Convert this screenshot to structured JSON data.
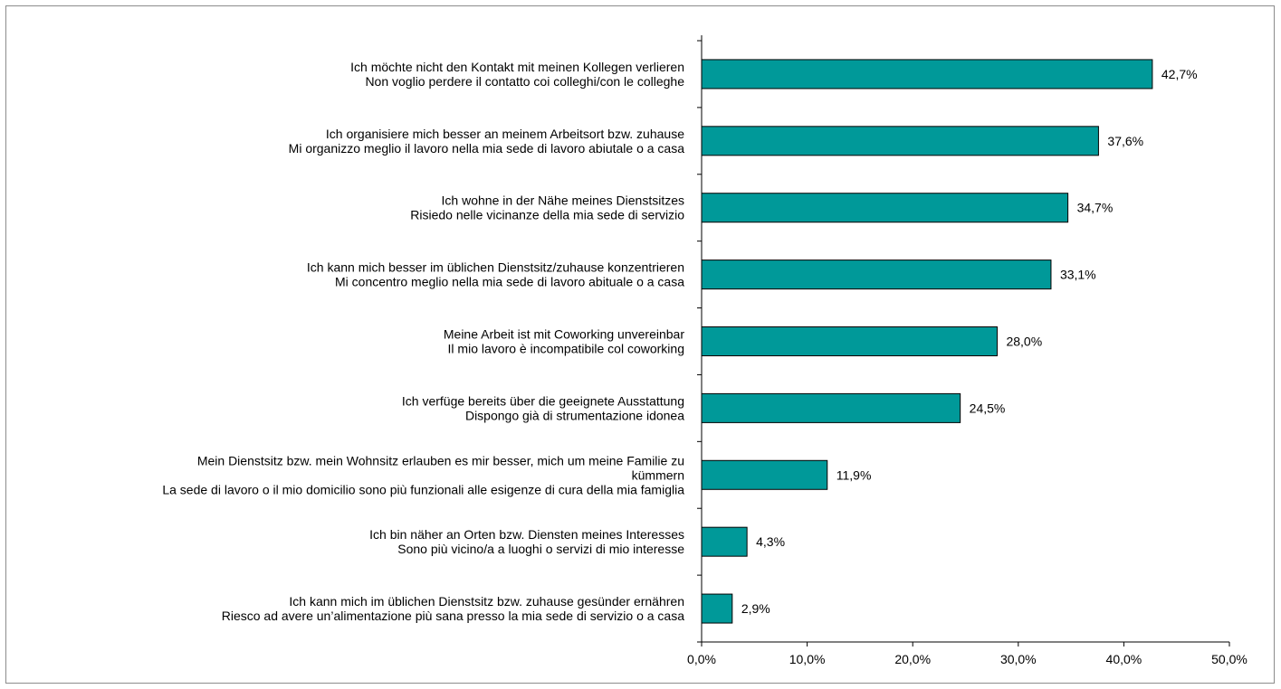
{
  "chart_data": {
    "type": "bar",
    "orientation": "horizontal",
    "title": "",
    "xlabel": "",
    "ylabel": "",
    "xlim": [
      0,
      50
    ],
    "grid": false,
    "legend": "none",
    "bar_color": "#009999",
    "bar_edge_color": "#000000",
    "x_ticks": [
      "0,0%",
      "10,0%",
      "20,0%",
      "30,0%",
      "40,0%",
      "50,0%"
    ],
    "categories": [
      [
        "Ich möchte nicht den Kontakt mit meinen Kollegen verlieren",
        "Non voglio perdere il contatto coi colleghi/con le colleghe"
      ],
      [
        "Ich organisiere mich besser an meinem Arbeitsort bzw. zuhause",
        "Mi organizzo meglio il lavoro nella mia sede di lavoro abiutale o a casa"
      ],
      [
        "Ich wohne in der Nähe meines Dienstsitzes",
        "Risiedo nelle vicinanze della mia sede di servizio"
      ],
      [
        "Ich kann mich besser im üblichen Dienstsitz/zuhause konzentrieren",
        "Mi concentro meglio nella mia sede di lavoro abituale o a casa"
      ],
      [
        "Meine Arbeit ist mit Coworking unvereinbar",
        "Il mio lavoro è incompatibile col coworking"
      ],
      [
        "Ich verfüge bereits über die geeignete Ausstattung",
        "Dispongo già di strumentazione idonea"
      ],
      [
        "Mein Dienstsitz bzw. mein Wohnsitz erlauben es mir besser, mich um meine Familie zu",
        "kümmern",
        "La sede di lavoro o il mio domicilio sono più funzionali alle esigenze di cura della mia famiglia"
      ],
      [
        "Ich bin näher an Orten bzw. Diensten meines Interesses",
        "Sono più vicino/a a luoghi o servizi di mio interesse"
      ],
      [
        "Ich kann mich im üblichen Dienstsitz bzw. zuhause gesünder ernähren",
        "Riesco ad avere un’alimentazione più sana presso la mia sede di servizio o a casa"
      ]
    ],
    "values": [
      42.7,
      37.6,
      34.7,
      33.1,
      28.0,
      24.5,
      11.9,
      4.3,
      2.9
    ],
    "value_labels": [
      "42,7%",
      "37,6%",
      "34,7%",
      "33,1%",
      "28,0%",
      "24,5%",
      "11,9%",
      "4,3%",
      "2,9%"
    ]
  }
}
